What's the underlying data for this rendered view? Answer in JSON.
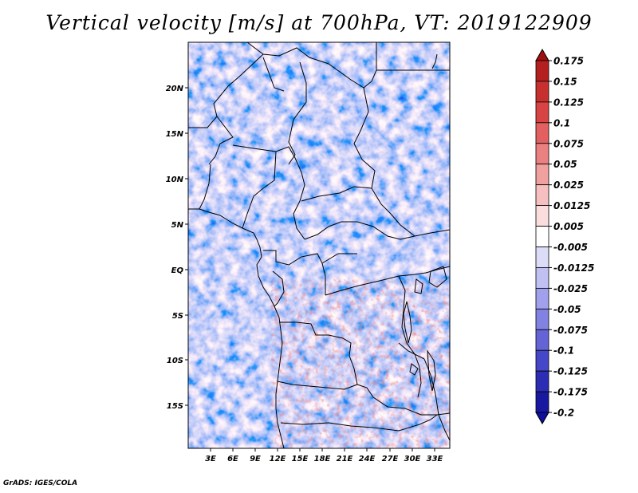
{
  "title": "Vertical velocity [m/s] at 700hPa, VT: 2019122909",
  "credit": "GrADS: IGES/COLA",
  "map": {
    "lat_labels": [
      "20N",
      "15N",
      "10N",
      "5N",
      "EQ",
      "5S",
      "10S",
      "15S"
    ],
    "lon_labels": [
      "3E",
      "6E",
      "9E",
      "12E",
      "15E",
      "18E",
      "21E",
      "24E",
      "27E",
      "30E",
      "33E"
    ]
  },
  "colorbar": {
    "labels": [
      "0.175",
      "0.15",
      "0.125",
      "0.1",
      "0.075",
      "0.05",
      "0.025",
      "0.0125",
      "0.005",
      "-0.005",
      "-0.0125",
      "-0.025",
      "-0.05",
      "-0.075",
      "-0.1",
      "-0.125",
      "-0.175",
      "-0.2"
    ],
    "colors": [
      "#a01010",
      "#b42020",
      "#c83030",
      "#d84444",
      "#e26060",
      "#ea8080",
      "#f1a0a0",
      "#f7c0c0",
      "#fbdddd",
      "#ffffff",
      "#dcdcf8",
      "#c0c0f2",
      "#a0a0ec",
      "#8282e2",
      "#6464d6",
      "#4646c8",
      "#2c2cb4",
      "#1818a0",
      "#1010a0"
    ]
  }
}
